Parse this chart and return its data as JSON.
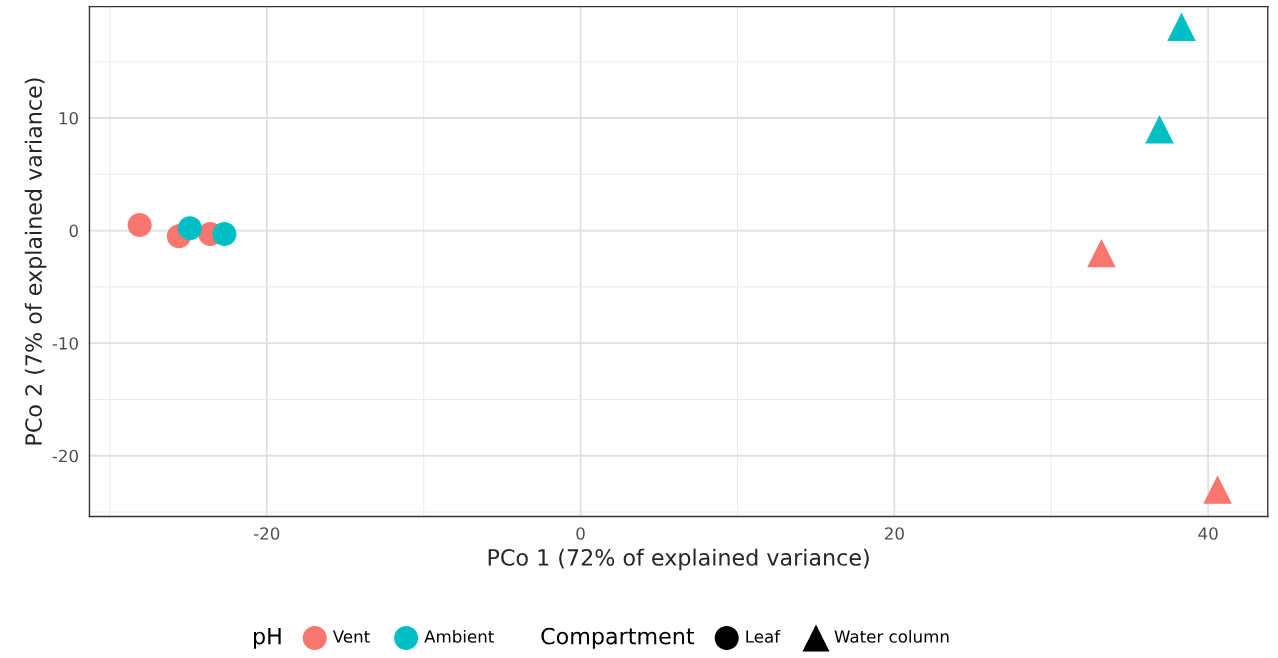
{
  "chart_data": {
    "type": "scatter",
    "xlabel": "PCo 1 (72% of explained variance)",
    "ylabel": "PCo 2 (7% of explained variance)",
    "xlim": [
      -31.3,
      43.8
    ],
    "ylim": [
      -25.4,
      19.9
    ],
    "xticks": [
      -20,
      0,
      20,
      40
    ],
    "yticks": [
      -20,
      -10,
      0,
      10
    ],
    "grid": true,
    "legend": "bottom",
    "legend_title": [
      "pH",
      "Compartment"
    ],
    "series": [
      {
        "name": "Vent",
        "color": "#f8766d",
        "x": [
          -28.1,
          -25.6,
          -23.6,
          33.2,
          40.6
        ],
        "values": [
          0.5,
          -0.5,
          -0.3,
          -2.0,
          -23.0
        ],
        "marker": [
          "circle",
          "circle",
          "circle",
          "triangle",
          "triangle"
        ]
      },
      {
        "name": "Ambient",
        "color": "#00bfc4",
        "x": [
          -24.9,
          -22.7,
          38.3,
          36.9
        ],
        "values": [
          0.2,
          -0.3,
          18.1,
          9.0
        ],
        "marker": [
          "circle",
          "circle",
          "triangle",
          "triangle"
        ]
      },
      {
        "name": "Leaf",
        "color": "#000000",
        "marker": "circle"
      },
      {
        "name": "Water column",
        "color": "#000000",
        "marker": "triangle"
      }
    ]
  }
}
